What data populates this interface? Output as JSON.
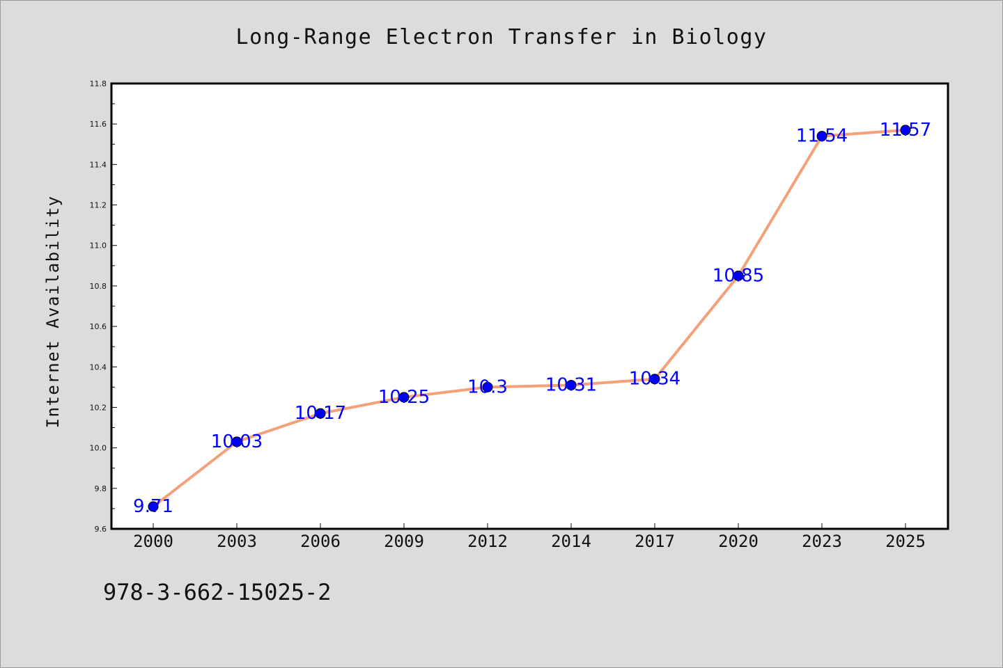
{
  "chart_data": {
    "type": "line",
    "title": "Long-Range Electron Transfer in Biology",
    "xlabel": "",
    "ylabel": "Internet Availability",
    "categories": [
      "2000",
      "2003",
      "2006",
      "2009",
      "2012",
      "2014",
      "2017",
      "2020",
      "2023",
      "2025"
    ],
    "series": [
      {
        "values": [
          9.71,
          10.03,
          10.17,
          10.25,
          10.3,
          10.31,
          10.34,
          10.85,
          11.54,
          11.57
        ],
        "data_labels": [
          "9.71",
          "10.03",
          "10.17",
          "10.25",
          "10.3",
          "10.31",
          "10.34",
          "10.85",
          "11.54",
          "11.57"
        ],
        "line_color": "#f4a07a",
        "marker_color": "#0000ff"
      }
    ],
    "ylim": [
      9.6,
      11.8
    ],
    "yticks": [
      "9.6",
      "9.8",
      "10.0",
      "10.2",
      "10.4",
      "10.6",
      "10.8",
      "11.0",
      "11.2",
      "11.4",
      "11.6",
      "11.8"
    ],
    "grid": false,
    "label_color": "#0000ff"
  },
  "footer": {
    "isbn": "978-3-662-15025-2"
  }
}
